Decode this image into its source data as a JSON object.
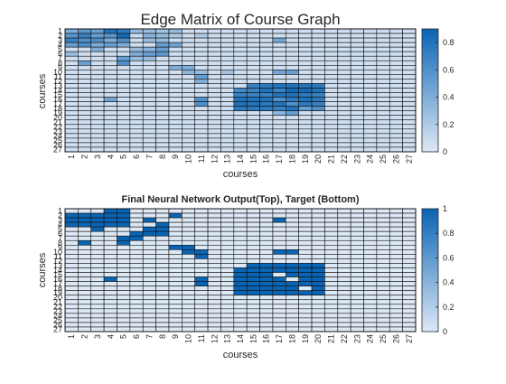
{
  "colors": {
    "low": "#dde8f5",
    "high": "#0a64b4",
    "grid": "#111111"
  },
  "chart_data": [
    {
      "type": "heatmap",
      "title": "Edge Matrix of Course Graph",
      "xlabel": "courses",
      "ylabel": "courses",
      "rows": 27,
      "cols": 27,
      "xticks": [
        "1",
        "2",
        "3",
        "4",
        "5",
        "6",
        "7",
        "8",
        "9",
        "10",
        "11",
        "12",
        "13",
        "14",
        "15",
        "16",
        "17",
        "18",
        "19",
        "20",
        "21",
        "22",
        "23",
        "24",
        "25",
        "26",
        "27"
      ],
      "yticks": [
        "1",
        "2",
        "3",
        "4",
        "5",
        "6",
        "7",
        "8",
        "9",
        "10",
        "11",
        "12",
        "13",
        "14",
        "15",
        "16",
        "17",
        "18",
        "19",
        "20",
        "21",
        "22",
        "23",
        "24",
        "25",
        "26",
        "27"
      ],
      "clim": [
        0,
        0.9
      ],
      "colorbar_ticks": [
        0,
        0.2,
        0.4,
        0.6,
        0.8
      ],
      "colorbar_tick_labels": [
        "0",
        "0.2",
        "0.4",
        "0.6",
        "0.8"
      ],
      "base_value": 0.06,
      "cells": [
        [
          1,
          1,
          0.4
        ],
        [
          1,
          2,
          0.55
        ],
        [
          1,
          3,
          0.5
        ],
        [
          1,
          4,
          0.8
        ],
        [
          1,
          5,
          0.75
        ],
        [
          1,
          6,
          0.3
        ],
        [
          1,
          7,
          0.3
        ],
        [
          1,
          8,
          0.25
        ],
        [
          1,
          9,
          0.3
        ],
        [
          2,
          1,
          0.55
        ],
        [
          2,
          2,
          0.7
        ],
        [
          2,
          3,
          0.5
        ],
        [
          2,
          4,
          0.55
        ],
        [
          2,
          5,
          0.85
        ],
        [
          2,
          7,
          0.35
        ],
        [
          2,
          8,
          0.3
        ],
        [
          2,
          9,
          0.2
        ],
        [
          2,
          11,
          0.2
        ],
        [
          3,
          1,
          0.7
        ],
        [
          3,
          2,
          0.6
        ],
        [
          3,
          3,
          0.6
        ],
        [
          3,
          4,
          0.4
        ],
        [
          3,
          5,
          0.6
        ],
        [
          3,
          7,
          0.3
        ],
        [
          3,
          8,
          0.3
        ],
        [
          3,
          17,
          0.45
        ],
        [
          4,
          1,
          0.5
        ],
        [
          4,
          2,
          0.6
        ],
        [
          4,
          3,
          0.4
        ],
        [
          4,
          4,
          0.5
        ],
        [
          4,
          5,
          0.4
        ],
        [
          4,
          8,
          0.5
        ],
        [
          4,
          9,
          0.45
        ],
        [
          5,
          3,
          0.4
        ],
        [
          5,
          6,
          0.3
        ],
        [
          5,
          7,
          0.35
        ],
        [
          5,
          8,
          0.5
        ],
        [
          6,
          1,
          0.3
        ],
        [
          6,
          6,
          0.4
        ],
        [
          6,
          7,
          0.5
        ],
        [
          6,
          8,
          0.55
        ],
        [
          7,
          5,
          0.5
        ],
        [
          7,
          6,
          0.3
        ],
        [
          7,
          7,
          0.3
        ],
        [
          8,
          2,
          0.5
        ],
        [
          8,
          5,
          0.6
        ],
        [
          9,
          9,
          0.4
        ],
        [
          9,
          10,
          0.4
        ],
        [
          10,
          10,
          0.35
        ],
        [
          10,
          11,
          0.3
        ],
        [
          10,
          13,
          0.25
        ],
        [
          10,
          17,
          0.45
        ],
        [
          10,
          18,
          0.5
        ],
        [
          11,
          11,
          0.5
        ],
        [
          12,
          11,
          0.4
        ],
        [
          13,
          15,
          0.7
        ],
        [
          13,
          16,
          0.75
        ],
        [
          13,
          17,
          0.8
        ],
        [
          13,
          18,
          0.8
        ],
        [
          13,
          19,
          0.8
        ],
        [
          13,
          20,
          0.75
        ],
        [
          14,
          14,
          0.65
        ],
        [
          14,
          15,
          0.7
        ],
        [
          14,
          16,
          0.8
        ],
        [
          14,
          17,
          0.7
        ],
        [
          14,
          18,
          0.85
        ],
        [
          14,
          19,
          0.85
        ],
        [
          14,
          20,
          0.8
        ],
        [
          15,
          14,
          0.7
        ],
        [
          15,
          15,
          0.7
        ],
        [
          15,
          16,
          0.7
        ],
        [
          15,
          17,
          0.8
        ],
        [
          15,
          18,
          0.8
        ],
        [
          15,
          19,
          0.75
        ],
        [
          15,
          20,
          0.7
        ],
        [
          16,
          4,
          0.45
        ],
        [
          16,
          11,
          0.6
        ],
        [
          16,
          14,
          0.8
        ],
        [
          16,
          15,
          0.8
        ],
        [
          16,
          16,
          0.8
        ],
        [
          16,
          17,
          0.6
        ],
        [
          16,
          18,
          0.75
        ],
        [
          16,
          19,
          0.8
        ],
        [
          16,
          20,
          0.75
        ],
        [
          17,
          11,
          0.6
        ],
        [
          17,
          14,
          0.8
        ],
        [
          17,
          15,
          0.8
        ],
        [
          17,
          16,
          0.75
        ],
        [
          17,
          17,
          0.8
        ],
        [
          17,
          18,
          0.6
        ],
        [
          17,
          19,
          0.75
        ],
        [
          17,
          20,
          0.7
        ],
        [
          18,
          14,
          0.75
        ],
        [
          18,
          15,
          0.75
        ],
        [
          18,
          16,
          0.75
        ],
        [
          18,
          17,
          0.7
        ],
        [
          18,
          18,
          0.8
        ],
        [
          18,
          19,
          0.5
        ],
        [
          18,
          20,
          0.6
        ],
        [
          19,
          17,
          0.35
        ],
        [
          19,
          18,
          0.5
        ]
      ]
    },
    {
      "type": "heatmap",
      "title": "Final Neural Network Output(Top), Target (Bottom)",
      "xlabel": "courses",
      "ylabel": "courses",
      "rows": 27,
      "cols": 27,
      "xticks": [
        "1",
        "2",
        "3",
        "4",
        "5",
        "6",
        "7",
        "8",
        "9",
        "10",
        "11",
        "12",
        "13",
        "14",
        "15",
        "16",
        "17",
        "18",
        "19",
        "20",
        "21",
        "22",
        "23",
        "24",
        "25",
        "26",
        "27"
      ],
      "yticks": [
        "1",
        "2",
        "3",
        "4",
        "5",
        "6",
        "7",
        "8",
        "9",
        "10",
        "11",
        "12",
        "13",
        "14",
        "15",
        "16",
        "17",
        "18",
        "19",
        "20",
        "21",
        "22",
        "23",
        "24",
        "25",
        "26",
        "27"
      ],
      "clim": [
        0,
        1
      ],
      "colorbar_ticks": [
        0,
        0.2,
        0.4,
        0.6,
        0.8,
        1
      ],
      "colorbar_tick_labels": [
        "0",
        "0.2",
        "0.4",
        "0.6",
        "0.8",
        "1"
      ],
      "base_value": 0,
      "cells": [
        [
          1,
          4,
          1
        ],
        [
          1,
          5,
          1
        ],
        [
          2,
          1,
          1
        ],
        [
          2,
          2,
          1
        ],
        [
          2,
          3,
          1
        ],
        [
          2,
          4,
          1
        ],
        [
          2,
          5,
          1
        ],
        [
          2,
          9,
          1
        ],
        [
          3,
          1,
          1
        ],
        [
          3,
          2,
          1
        ],
        [
          3,
          3,
          1
        ],
        [
          3,
          4,
          1
        ],
        [
          3,
          5,
          1
        ],
        [
          3,
          7,
          1
        ],
        [
          3,
          17,
          1
        ],
        [
          4,
          1,
          1
        ],
        [
          4,
          2,
          1
        ],
        [
          4,
          3,
          1
        ],
        [
          4,
          4,
          1
        ],
        [
          4,
          5,
          1
        ],
        [
          4,
          8,
          1
        ],
        [
          5,
          3,
          1
        ],
        [
          5,
          7,
          1
        ],
        [
          5,
          8,
          1
        ],
        [
          6,
          6,
          1
        ],
        [
          6,
          7,
          1
        ],
        [
          6,
          8,
          1
        ],
        [
          7,
          5,
          1
        ],
        [
          7,
          6,
          1
        ],
        [
          8,
          2,
          1
        ],
        [
          8,
          5,
          1
        ],
        [
          9,
          9,
          1
        ],
        [
          9,
          10,
          1
        ],
        [
          10,
          10,
          1
        ],
        [
          10,
          11,
          1
        ],
        [
          10,
          17,
          1
        ],
        [
          10,
          18,
          1
        ],
        [
          11,
          11,
          1
        ],
        [
          13,
          15,
          1
        ],
        [
          13,
          16,
          1
        ],
        [
          13,
          17,
          1
        ],
        [
          13,
          18,
          1
        ],
        [
          13,
          19,
          1
        ],
        [
          13,
          20,
          1
        ],
        [
          14,
          14,
          1
        ],
        [
          14,
          15,
          1
        ],
        [
          14,
          16,
          1
        ],
        [
          14,
          17,
          1
        ],
        [
          14,
          18,
          1
        ],
        [
          14,
          19,
          1
        ],
        [
          14,
          20,
          1
        ],
        [
          15,
          14,
          1
        ],
        [
          15,
          15,
          1
        ],
        [
          15,
          16,
          1
        ],
        [
          15,
          18,
          1
        ],
        [
          15,
          19,
          1
        ],
        [
          15,
          20,
          1
        ],
        [
          16,
          4,
          1
        ],
        [
          16,
          11,
          1
        ],
        [
          16,
          14,
          1
        ],
        [
          16,
          15,
          1
        ],
        [
          16,
          16,
          1
        ],
        [
          16,
          17,
          1
        ],
        [
          16,
          19,
          1
        ],
        [
          16,
          20,
          1
        ],
        [
          17,
          11,
          1
        ],
        [
          17,
          14,
          1
        ],
        [
          17,
          15,
          1
        ],
        [
          17,
          16,
          1
        ],
        [
          17,
          17,
          1
        ],
        [
          17,
          18,
          1
        ],
        [
          17,
          19,
          1
        ],
        [
          17,
          20,
          1
        ],
        [
          18,
          14,
          1
        ],
        [
          18,
          15,
          1
        ],
        [
          18,
          16,
          1
        ],
        [
          18,
          17,
          1
        ],
        [
          18,
          18,
          1
        ],
        [
          18,
          20,
          1
        ],
        [
          19,
          14,
          1
        ],
        [
          19,
          15,
          1
        ],
        [
          19,
          16,
          1
        ],
        [
          19,
          17,
          1
        ],
        [
          19,
          18,
          1
        ],
        [
          19,
          19,
          1
        ],
        [
          19,
          20,
          1
        ]
      ]
    }
  ]
}
